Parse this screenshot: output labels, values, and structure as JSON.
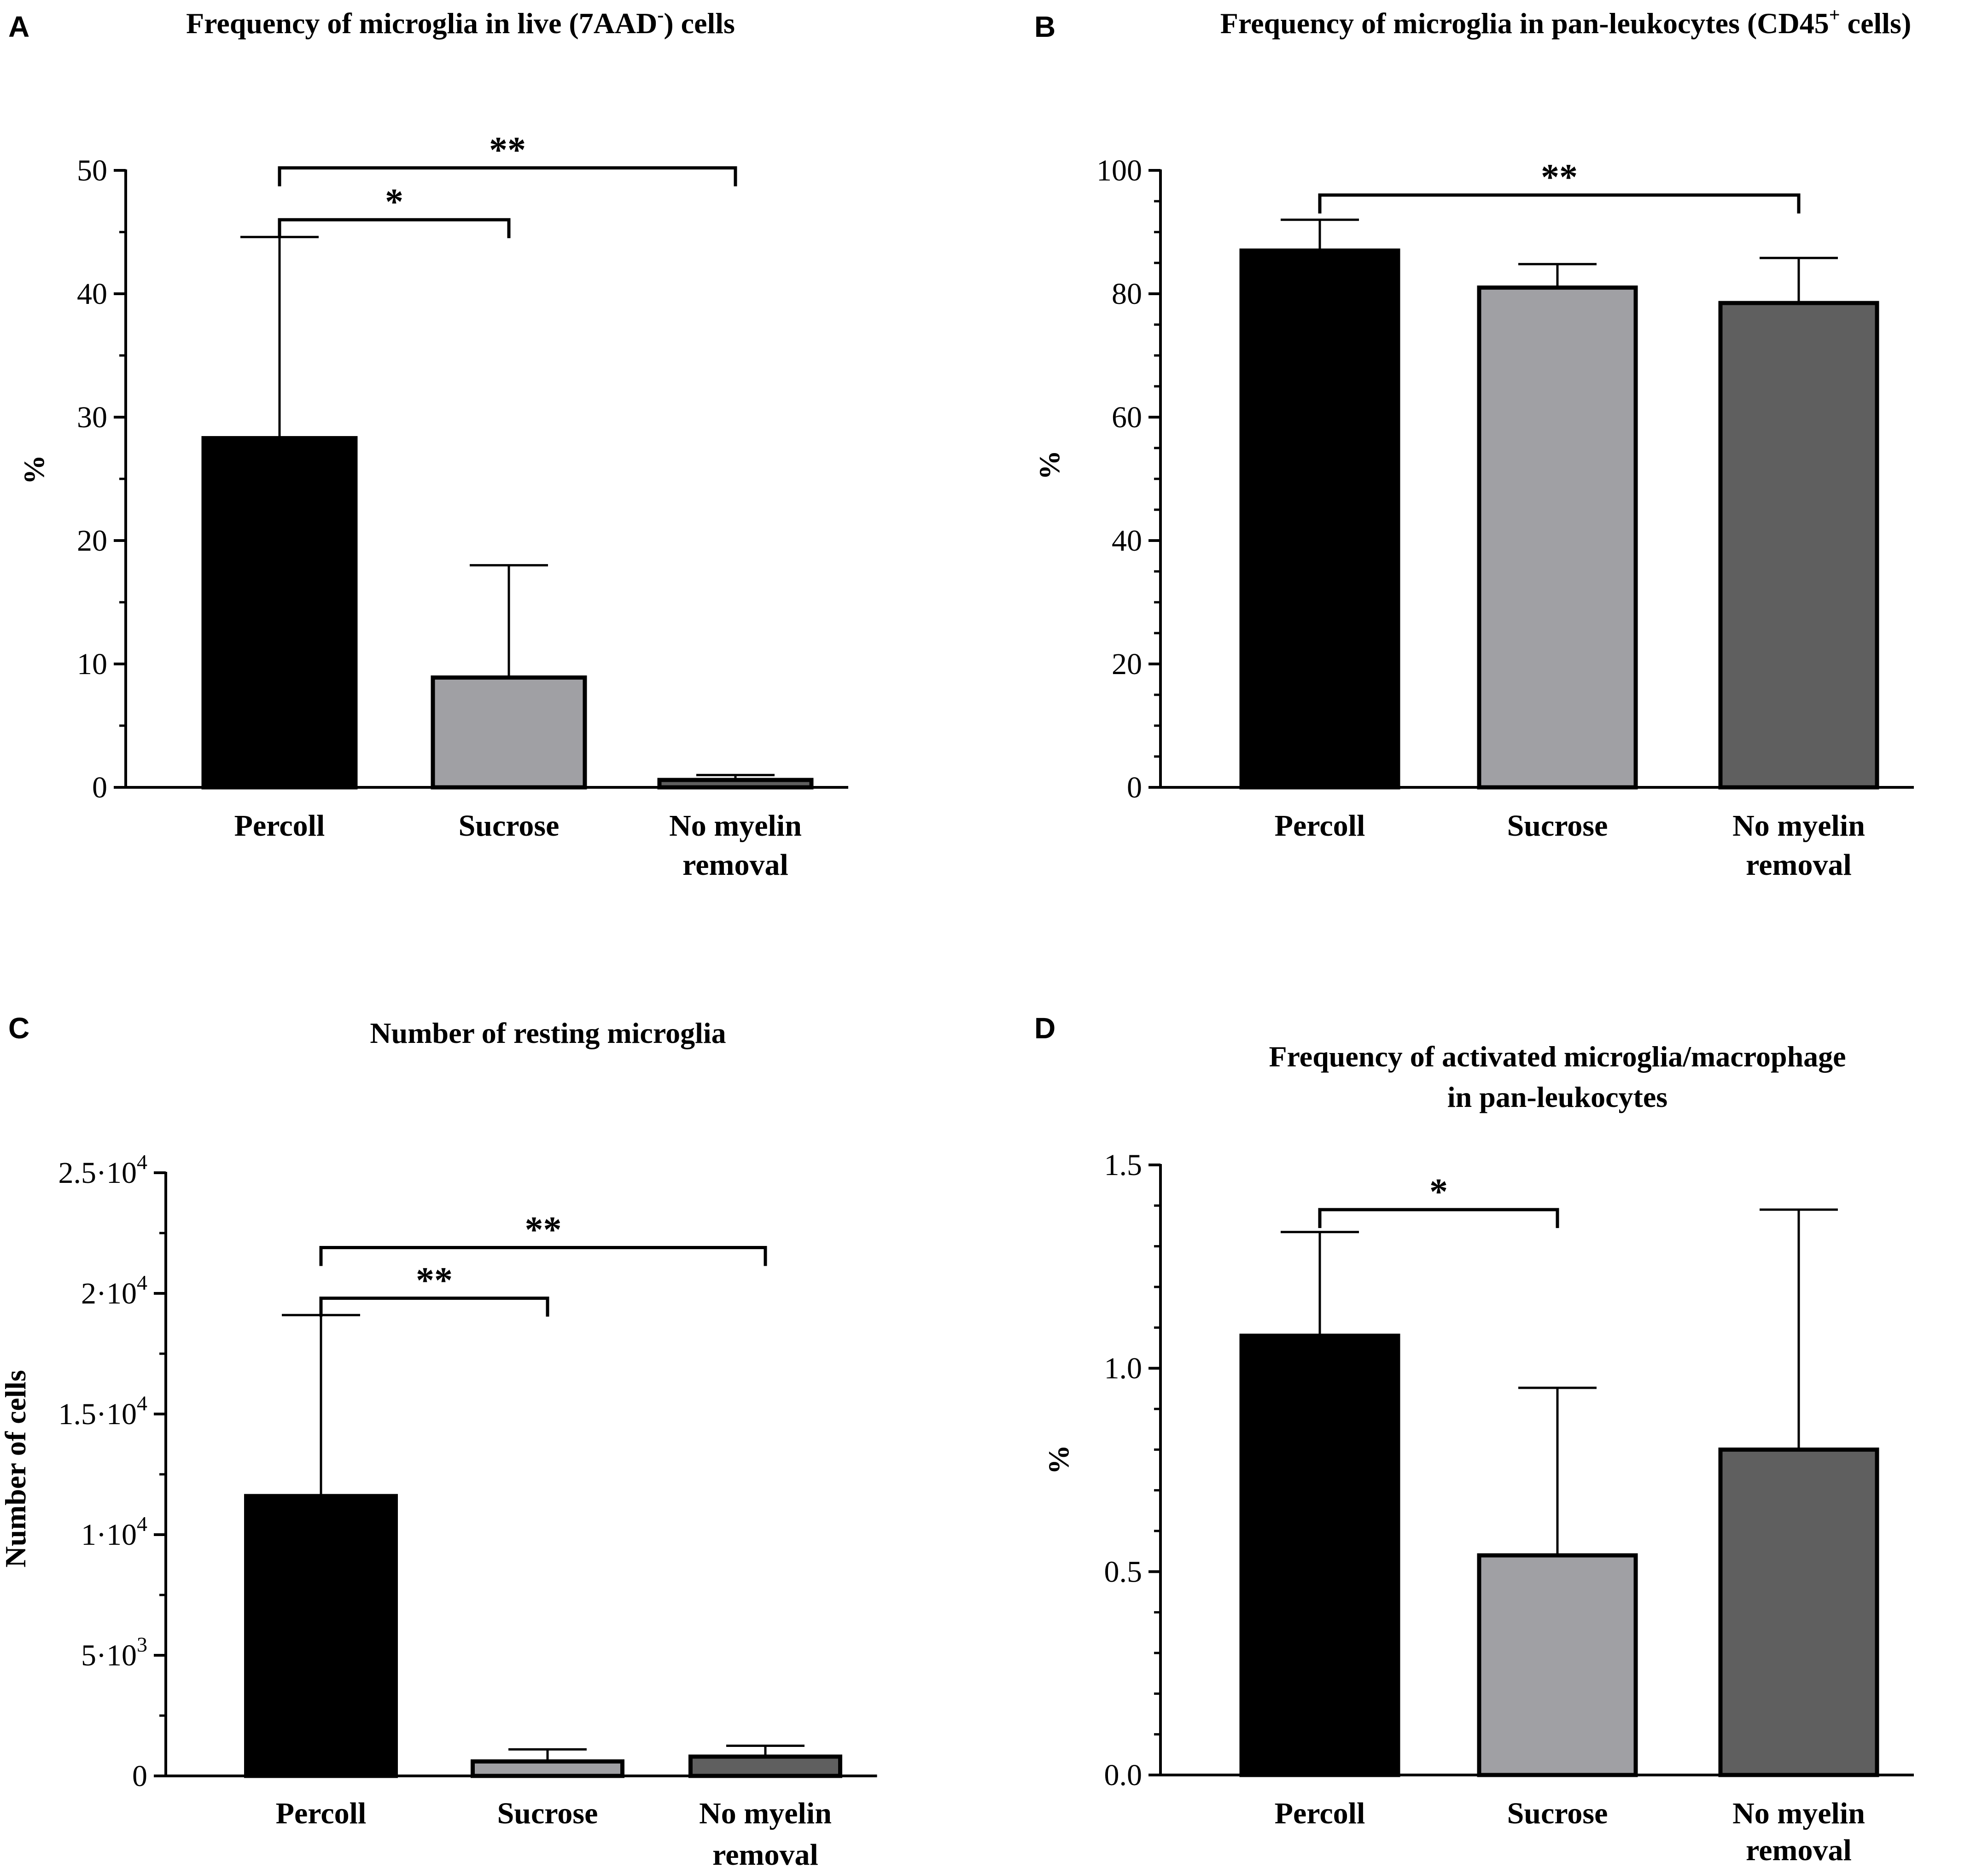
{
  "figure": {
    "colors": {
      "Percoll": "#000000",
      "Sucrose": "#a0a0a4",
      "No myelin removal": "#5f5f5f",
      "axis": "#000000"
    }
  },
  "chart_data": [
    {
      "panel": "A",
      "type": "bar",
      "title": "Frequency of microglia in live (7AAD",
      "title_sup": "-",
      "title_end": ") cells",
      "ylabel": "%",
      "xlabel": "",
      "categories": [
        [
          "Percoll"
        ],
        [
          "Sucrose"
        ],
        [
          "No myelin",
          "removal"
        ]
      ],
      "values": [
        28.3,
        8.9,
        0.6
      ],
      "errors_upper": [
        44.6,
        18.0,
        1.0
      ],
      "ylim": [
        0,
        50
      ],
      "yticks": [
        0,
        10,
        20,
        30,
        40,
        50
      ],
      "ytick_labels": [
        [
          "0"
        ],
        [
          "10"
        ],
        [
          "20"
        ],
        [
          "30"
        ],
        [
          "40"
        ],
        [
          "50"
        ]
      ],
      "minor_ticks": 1,
      "significance": [
        {
          "from": 0,
          "to": 1,
          "label": "*",
          "y": 46
        },
        {
          "from": 0,
          "to": 2,
          "label": "**",
          "y": 50.2
        }
      ]
    },
    {
      "panel": "B",
      "type": "bar",
      "title": "Frequency of microglia in pan-leukocytes (CD45",
      "title_sup": "+",
      "title_end": " cells)",
      "ylabel": "%",
      "xlabel": "",
      "categories": [
        [
          "Percoll"
        ],
        [
          "Sucrose"
        ],
        [
          "No myelin",
          "removal"
        ]
      ],
      "values": [
        87.0,
        81.0,
        78.5
      ],
      "errors_upper": [
        92.0,
        84.8,
        85.8
      ],
      "ylim": [
        0,
        100
      ],
      "yticks": [
        0,
        20,
        40,
        60,
        80,
        100
      ],
      "ytick_labels": [
        [
          "0"
        ],
        [
          "20"
        ],
        [
          "40"
        ],
        [
          "60"
        ],
        [
          "80"
        ],
        [
          "100"
        ]
      ],
      "minor_ticks": 3,
      "significance": [
        {
          "from": 0,
          "to": 2,
          "label": "**",
          "y": 96
        }
      ]
    },
    {
      "panel": "C",
      "type": "bar",
      "title": "Number of resting microglia",
      "title_sup": "",
      "title_end": "",
      "ylabel": "Number of cells",
      "xlabel": "",
      "categories": [
        [
          "Percoll"
        ],
        [
          "Sucrose"
        ],
        [
          "No myelin",
          "removal"
        ]
      ],
      "values": [
        11600,
        600,
        800
      ],
      "errors_upper": [
        19100,
        1100,
        1250
      ],
      "ylim": [
        0,
        25000
      ],
      "yticks": [
        0,
        5000,
        10000,
        15000,
        20000,
        25000
      ],
      "ytick_labels": [
        [
          "0"
        ],
        [
          "5·10",
          "3"
        ],
        [
          "1·10",
          "4"
        ],
        [
          "1.5·10",
          "4"
        ],
        [
          "2·10",
          "4"
        ],
        [
          "2.5·10",
          "4"
        ]
      ],
      "minor_ticks": 1,
      "significance": [
        {
          "from": 0,
          "to": 1,
          "label": "**",
          "y": 19800
        },
        {
          "from": 0,
          "to": 2,
          "label": "**",
          "y": 21900
        }
      ]
    },
    {
      "panel": "D",
      "type": "bar",
      "title": "Frequency of activated microglia/macrophage",
      "title_line2": "in pan-leukocytes",
      "title_sup": "",
      "title_end": "",
      "ylabel": "%",
      "xlabel": "",
      "categories": [
        [
          "Percoll"
        ],
        [
          "Sucrose"
        ],
        [
          "No myelin",
          "removal"
        ]
      ],
      "values": [
        1.08,
        0.54,
        0.8
      ],
      "errors_upper": [
        1.335,
        0.952,
        1.39
      ],
      "ylim": [
        0,
        1.5
      ],
      "yticks": [
        0,
        0.5,
        1.0,
        1.5
      ],
      "ytick_labels": [
        [
          "0.0"
        ],
        [
          "0.5"
        ],
        [
          "1.0"
        ],
        [
          "1.5"
        ]
      ],
      "minor_ticks": 4,
      "significance": [
        {
          "from": 0,
          "to": 1,
          "label": "*",
          "y": 1.39
        }
      ]
    }
  ]
}
